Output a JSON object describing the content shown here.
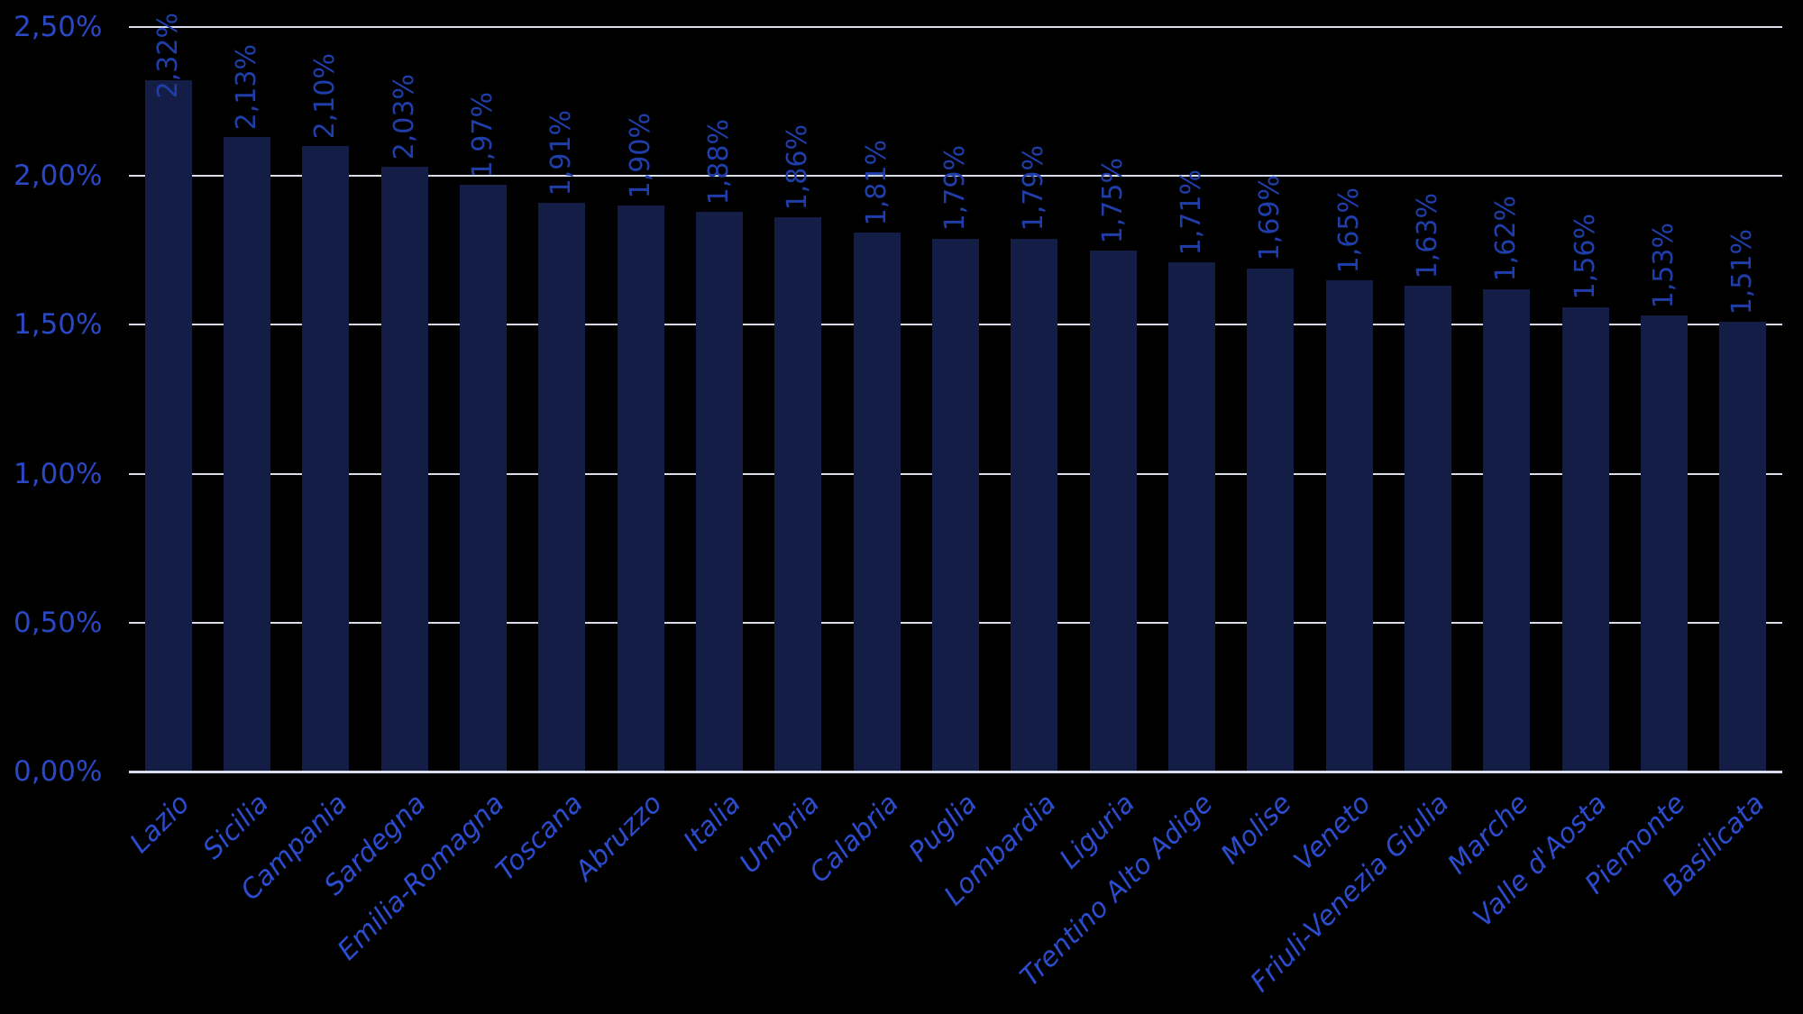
{
  "chart_data": {
    "type": "bar",
    "title": "",
    "xlabel": "",
    "ylabel": "",
    "categories": [
      "Lazio",
      "Sicilia",
      "Campania",
      "Sardegna",
      "Emilia-Romagna",
      "Toscana",
      "Abruzzo",
      "Italia",
      "Umbria",
      "Calabria",
      "Puglia",
      "Lombardia",
      "Liguria",
      "Trentino Alto Adige",
      "Molise",
      "Veneto",
      "Friuli-Venezia Giulia",
      "Marche",
      "Valle d'Aosta",
      "Piemonte",
      "Basilicata"
    ],
    "values": [
      2.32,
      2.13,
      2.1,
      2.03,
      1.97,
      1.91,
      1.9,
      1.88,
      1.86,
      1.81,
      1.79,
      1.79,
      1.75,
      1.71,
      1.69,
      1.65,
      1.63,
      1.62,
      1.56,
      1.53,
      1.51
    ],
    "value_labels": [
      "2,32%",
      "2,13%",
      "2,10%",
      "2,03%",
      "1,97%",
      "1,91%",
      "1,90%",
      "1,88%",
      "1,86%",
      "1,81%",
      "1,79%",
      "1,79%",
      "1,75%",
      "1,71%",
      "1,69%",
      "1,65%",
      "1,63%",
      "1,62%",
      "1,56%",
      "1,53%",
      "1,51%"
    ],
    "y_ticks": [
      "2,50%",
      "2,00%",
      "1,50%",
      "1,00%",
      "0,50%",
      "0,00%"
    ],
    "y_tick_values": [
      2.5,
      2.0,
      1.5,
      1.0,
      0.5,
      0.0
    ],
    "ylim": [
      0,
      2.5
    ],
    "grid": true,
    "legend": false,
    "category_label_rotation_deg": -45,
    "value_label_rotation_deg": -90,
    "colors": {
      "background": "#000000",
      "bar": "#131D46",
      "gridline": "#D9DCEA",
      "axis_line": "#D9DCEA",
      "y_tick_label": "#2A48C4",
      "value_label": "#1F3EAA",
      "category_label": "#2C4CCE"
    }
  }
}
